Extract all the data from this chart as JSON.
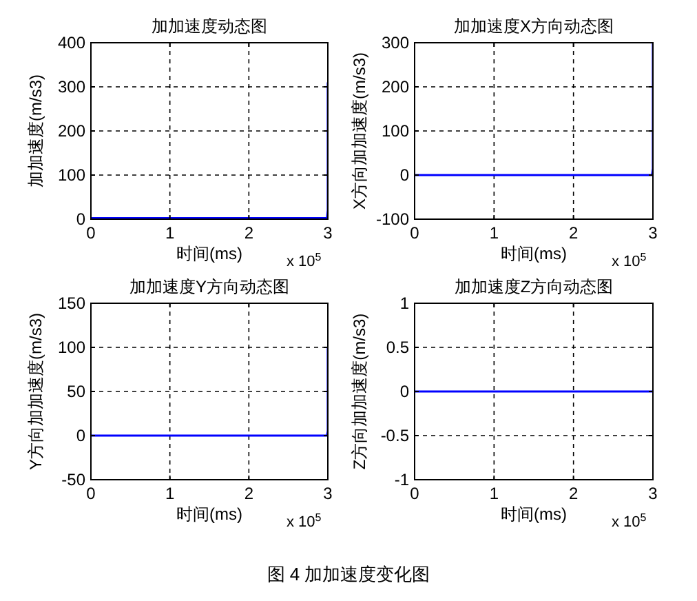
{
  "chart_data": [
    {
      "type": "line",
      "title": "加加速度动态图",
      "xlabel": "时间(ms)",
      "ylabel": "加加速度(m/s3)",
      "x": [
        0,
        2.99,
        3,
        3
      ],
      "series": [
        {
          "color": "#0000ff",
          "values": [
            2,
            2,
            20,
            310
          ]
        }
      ],
      "xlim": [
        0,
        3
      ],
      "xticks": [
        0,
        1,
        2,
        3
      ],
      "ylim": [
        0,
        400
      ],
      "yticks": [
        0,
        100,
        200,
        300,
        400
      ],
      "grid": true,
      "annotations": [
        "x 10$^{5}$"
      ]
    },
    {
      "type": "line",
      "title": "加加速度X方向动态图",
      "xlabel": "时间(ms)",
      "ylabel": "X方向加加速度(m/s3)",
      "x": [
        0,
        2.99,
        3,
        3
      ],
      "series": [
        {
          "color": "#0000ff",
          "values": [
            0,
            0,
            15,
            300
          ]
        }
      ],
      "xlim": [
        0,
        3
      ],
      "xticks": [
        0,
        1,
        2,
        3
      ],
      "ylim": [
        -100,
        300
      ],
      "yticks": [
        -100,
        0,
        100,
        200,
        300
      ],
      "grid": true,
      "annotations": [
        "x 10$^{5}$"
      ]
    },
    {
      "type": "line",
      "title": "加加速度Y方向动态图",
      "xlabel": "时间(ms)",
      "ylabel": "Y方向加加速度(m/s3)",
      "x": [
        0,
        2.99,
        3,
        3
      ],
      "series": [
        {
          "color": "#0000ff",
          "values": [
            0,
            0,
            5,
            100
          ]
        }
      ],
      "xlim": [
        0,
        3
      ],
      "xticks": [
        0,
        1,
        2,
        3
      ],
      "ylim": [
        -50,
        150
      ],
      "yticks": [
        -50,
        0,
        50,
        100,
        150
      ],
      "grid": true,
      "annotations": [
        "x 10$^{5}$"
      ]
    },
    {
      "type": "line",
      "title": "加加速度Z方向动态图",
      "xlabel": "时间(ms)",
      "ylabel": "Z方向加加速度(m/s3)",
      "x": [
        0,
        3
      ],
      "series": [
        {
          "color": "#0000ff",
          "values": [
            0,
            0
          ]
        }
      ],
      "xlim": [
        0,
        3
      ],
      "xticks": [
        0,
        1,
        2,
        3
      ],
      "ylim": [
        -1,
        1
      ],
      "yticks": [
        -1,
        -0.5,
        0,
        0.5,
        1
      ],
      "grid": true,
      "annotations": [
        "x 10$^{5}$",
        "图 4  加加速度变化图"
      ]
    }
  ]
}
